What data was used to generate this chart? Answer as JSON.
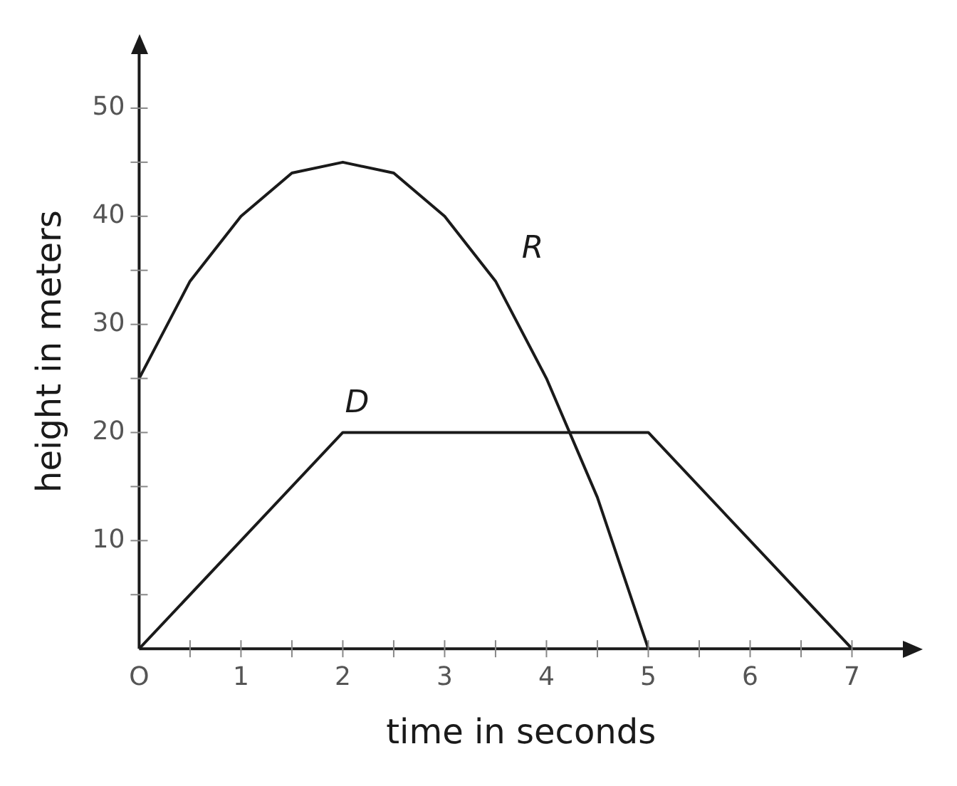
{
  "chart_data": {
    "type": "line",
    "xlabel": "time in seconds",
    "ylabel": "height in meters",
    "series": [
      {
        "name": "R",
        "color": "#1a1a1a",
        "x": [
          0,
          0.5,
          1,
          1.5,
          2,
          2.5,
          3,
          3.5,
          4,
          4.5,
          5
        ],
        "values": [
          25,
          34,
          40,
          44,
          45,
          44,
          40,
          34,
          25,
          14,
          0
        ]
      },
      {
        "name": "D",
        "color": "#1a1a1a",
        "x": [
          0,
          2,
          5,
          7
        ],
        "values": [
          0,
          20,
          20,
          0
        ]
      }
    ],
    "xlim": [
      0,
      7.5
    ],
    "ylim": [
      0,
      55
    ],
    "xticks": [
      {
        "value": 0,
        "label": "O"
      },
      {
        "value": 0.5,
        "label": null
      },
      1,
      {
        "value": 1.5,
        "label": null
      },
      2,
      {
        "value": 2.5,
        "label": null
      },
      3,
      {
        "value": 3.5,
        "label": null
      },
      4,
      {
        "value": 4.5,
        "label": null
      },
      5,
      {
        "value": 5.5,
        "label": null
      },
      6,
      {
        "value": 6.5,
        "label": null
      },
      7
    ],
    "yticks": [
      {
        "value": 5,
        "label": null
      },
      10,
      {
        "value": 15,
        "label": null
      },
      20,
      {
        "value": 25,
        "label": null
      },
      30,
      {
        "value": 35,
        "label": null
      },
      40,
      {
        "value": 45,
        "label": null
      },
      50
    ],
    "grid": false,
    "legend": false,
    "marker": "none",
    "line_style": "solid"
  }
}
